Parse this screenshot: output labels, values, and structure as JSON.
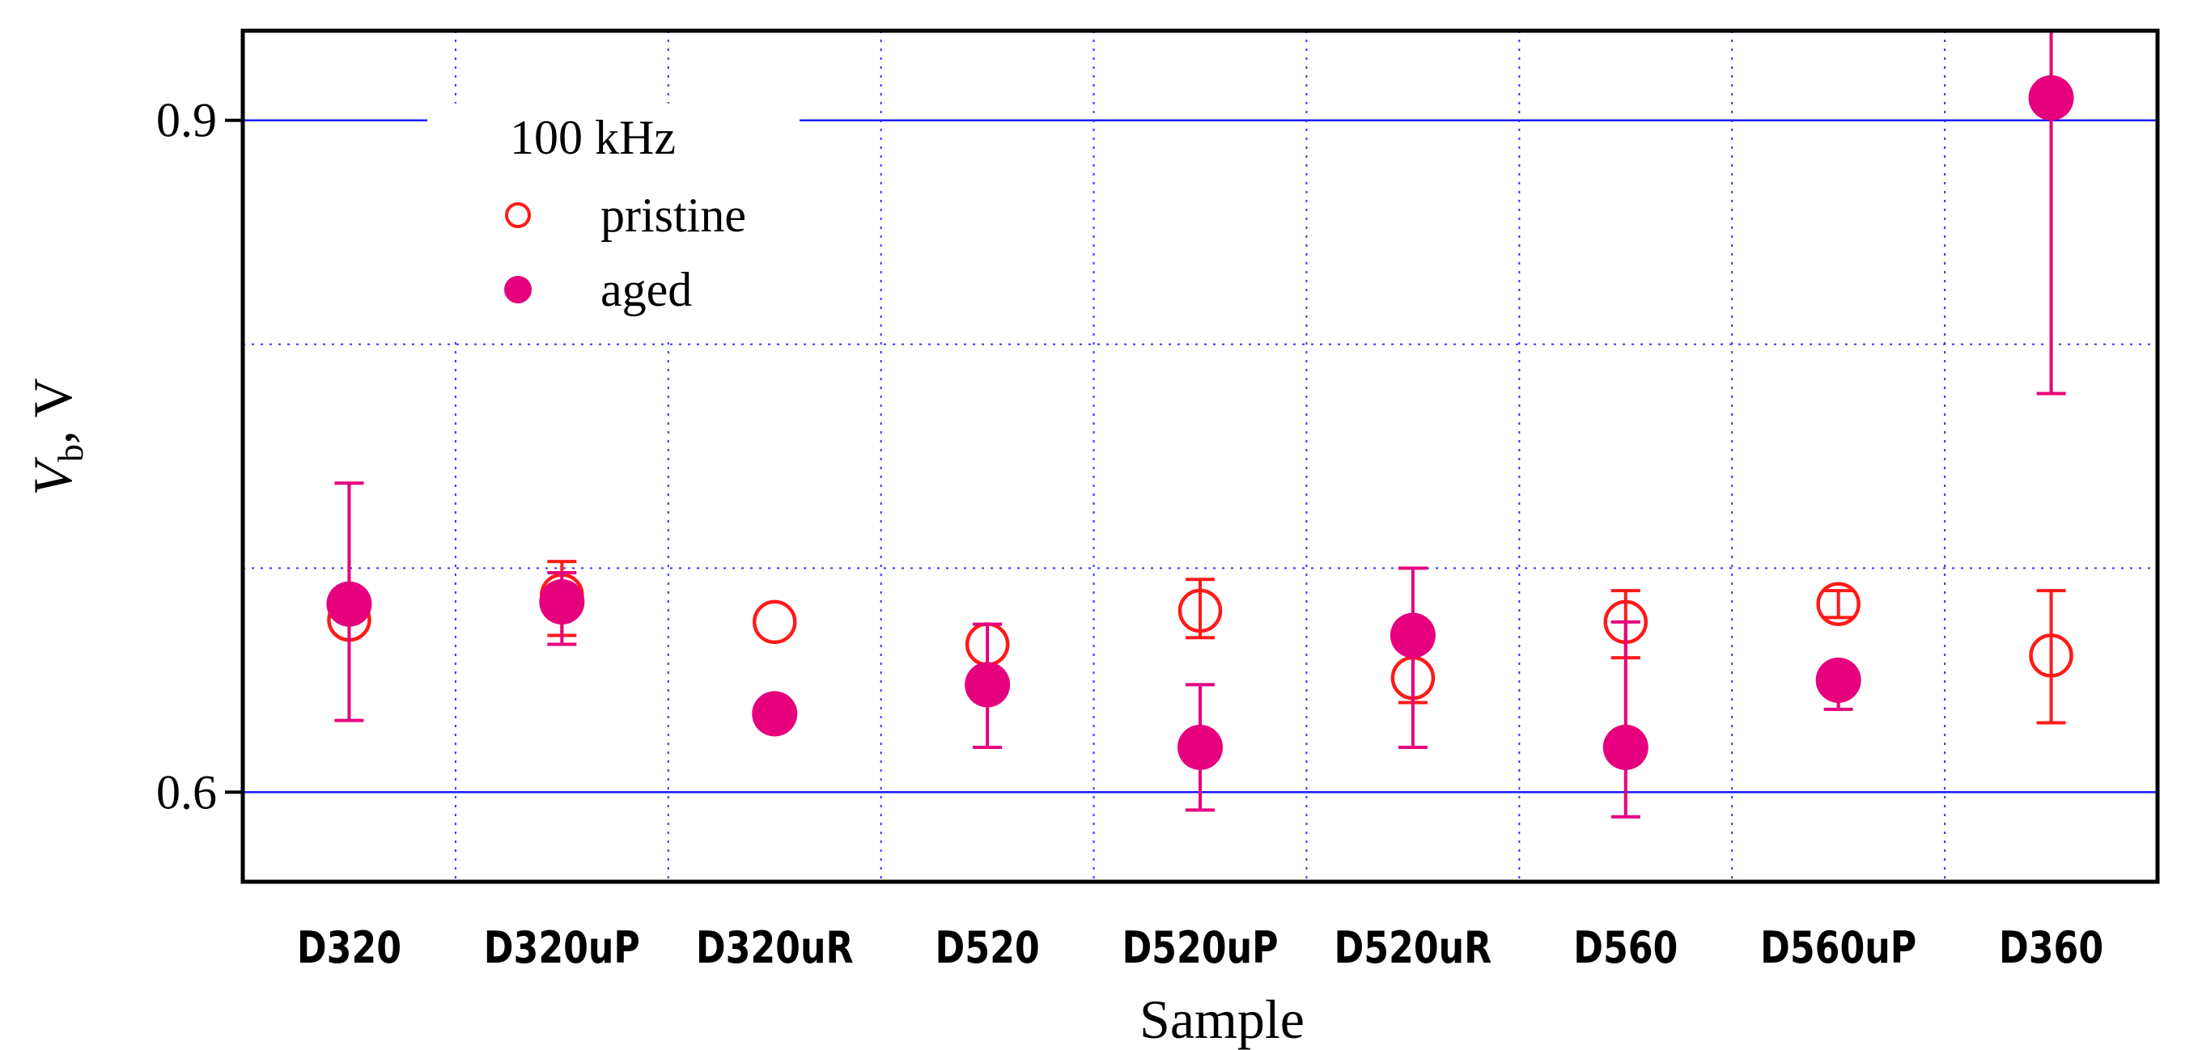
{
  "chart_data": {
    "type": "scatter",
    "xlabel": "Sample",
    "ylabel_var": "V",
    "ylabel_sub": "b",
    "ylabel_rest": ", V",
    "categories": [
      "D320",
      "D320uP",
      "D320uR",
      "D520",
      "D520uP",
      "D520uR",
      "D560",
      "D560uP",
      "D360"
    ],
    "ylim": [
      0.56,
      0.94
    ],
    "yticks": [
      0.6,
      0.9
    ],
    "ytick_labels": [
      "0.6",
      "0.9"
    ],
    "minor_grid_y": [
      0.7,
      0.8
    ],
    "grid": true,
    "legend": {
      "title": "100 kHz",
      "placement": "top-left"
    },
    "series": [
      {
        "name": "pristine",
        "marker": "open-circle",
        "color": "#ff1a1a",
        "values": [
          0.677,
          0.688,
          0.676,
          0.666,
          0.681,
          0.651,
          0.676,
          0.684,
          0.661
        ],
        "err_low": [
          null,
          0.67,
          null,
          null,
          0.669,
          0.64,
          0.66,
          0.678,
          0.631
        ],
        "err_high": [
          null,
          0.703,
          null,
          null,
          0.695,
          0.671,
          0.69,
          0.69,
          0.69
        ]
      },
      {
        "name": "aged",
        "marker": "filled-circle",
        "color": "#e6007e",
        "values": [
          0.684,
          0.685,
          0.635,
          0.648,
          0.62,
          0.67,
          0.62,
          0.65,
          0.91
        ],
        "err_low": [
          0.632,
          0.666,
          null,
          0.62,
          0.592,
          0.62,
          0.589,
          0.637,
          0.778
        ],
        "err_high": [
          0.738,
          0.698,
          null,
          0.675,
          0.648,
          0.7,
          0.676,
          0.657,
          0.94
        ]
      }
    ]
  }
}
